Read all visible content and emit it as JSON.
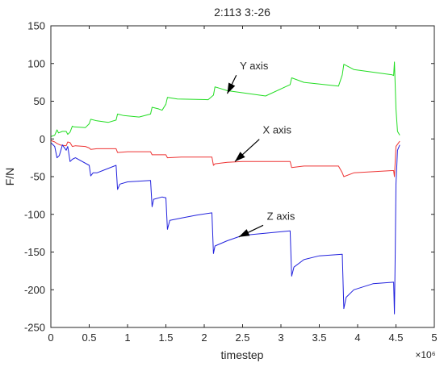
{
  "chart_data": {
    "type": "line",
    "title": "2:113 3:-26",
    "xlabel": "timestep",
    "ylabel": "F/N",
    "x_multiplier": "×10⁶",
    "xlim": [
      0,
      5
    ],
    "ylim": [
      -250,
      150
    ],
    "x_ticks": [
      0,
      0.5,
      1,
      1.5,
      2,
      2.5,
      3,
      3.5,
      4,
      4.5,
      5
    ],
    "y_ticks": [
      -250,
      -200,
      -150,
      -100,
      -50,
      0,
      50,
      100,
      150
    ],
    "grid": false,
    "colors": {
      "Y axis": "#22dd22",
      "X axis": "#ee3333",
      "Z axis": "#2222dd"
    },
    "series": [
      {
        "name": "Y axis",
        "x": [
          0,
          0.05,
          0.08,
          0.1,
          0.15,
          0.2,
          0.22,
          0.25,
          0.28,
          0.3,
          0.45,
          0.5,
          0.52,
          0.6,
          0.75,
          0.85,
          0.87,
          0.95,
          1.15,
          1.3,
          1.32,
          1.4,
          1.45,
          1.5,
          1.52,
          1.65,
          2.05,
          2.12,
          2.14,
          2.3,
          2.8,
          3.12,
          3.14,
          3.3,
          3.75,
          3.8,
          3.82,
          3.95,
          4.45,
          4.47,
          4.48,
          4.5,
          4.52,
          4.55
        ],
        "y": [
          3,
          5,
          12,
          8,
          10,
          10,
          6,
          9,
          17,
          16,
          15,
          20,
          26,
          24,
          22,
          25,
          33,
          31,
          29,
          33,
          42,
          40,
          38,
          46,
          55,
          53,
          52,
          58,
          69,
          64,
          57,
          72,
          81,
          75,
          70,
          85,
          99,
          92,
          85,
          84,
          102,
          40,
          10,
          5
        ]
      },
      {
        "name": "X axis",
        "x": [
          0,
          0.05,
          0.08,
          0.12,
          0.2,
          0.22,
          0.25,
          0.28,
          0.32,
          0.45,
          0.5,
          0.52,
          0.6,
          0.85,
          0.87,
          1.0,
          1.3,
          1.32,
          1.5,
          1.52,
          1.7,
          2.1,
          2.12,
          2.14,
          2.3,
          2.5,
          3.12,
          3.14,
          3.3,
          3.75,
          3.8,
          3.82,
          3.95,
          4.45,
          4.47,
          4.48,
          4.5,
          4.55
        ],
        "y": [
          -2,
          -4,
          -6,
          -8,
          -9,
          -4,
          -5,
          -10,
          -9,
          -10,
          -12,
          -14,
          -13,
          -13,
          -18,
          -17,
          -17,
          -21,
          -21,
          -25,
          -24,
          -24,
          -35,
          -33,
          -31,
          -30,
          -30,
          -38,
          -36,
          -36,
          -45,
          -50,
          -45,
          -42,
          -42,
          -50,
          -10,
          -3
        ]
      },
      {
        "name": "Z axis",
        "x": [
          0,
          0.05,
          0.08,
          0.11,
          0.15,
          0.2,
          0.22,
          0.25,
          0.28,
          0.32,
          0.5,
          0.52,
          0.55,
          0.6,
          0.85,
          0.87,
          0.9,
          1.0,
          1.3,
          1.32,
          1.34,
          1.45,
          1.5,
          1.52,
          1.55,
          1.7,
          1.9,
          2.1,
          2.12,
          2.14,
          2.3,
          2.5,
          3.12,
          3.14,
          3.17,
          3.3,
          3.5,
          3.8,
          3.82,
          3.85,
          3.95,
          4.2,
          4.47,
          4.48,
          4.49,
          4.5,
          4.52,
          4.55
        ],
        "y": [
          -5,
          -10,
          -25,
          -22,
          -8,
          -15,
          -10,
          -30,
          -27,
          -25,
          -35,
          -49,
          -45,
          -45,
          -35,
          -67,
          -60,
          -57,
          -55,
          -90,
          -80,
          -77,
          -78,
          -120,
          -108,
          -105,
          -101,
          -98,
          -152,
          -142,
          -135,
          -128,
          -122,
          -182,
          -170,
          -160,
          -155,
          -153,
          -225,
          -210,
          -200,
          -192,
          -190,
          -232,
          -150,
          -60,
          -15,
          -8
        ]
      }
    ],
    "annotations": [
      {
        "text": "Y axis",
        "x": 2.65,
        "y": 92,
        "arrow_to": [
          2.3,
          60
        ]
      },
      {
        "text": "X axis",
        "x": 2.95,
        "y": 7,
        "arrow_to": [
          2.4,
          -30
        ]
      },
      {
        "text": "Z axis",
        "x": 3.0,
        "y": -107,
        "arrow_to": [
          2.45,
          -130
        ]
      }
    ]
  }
}
